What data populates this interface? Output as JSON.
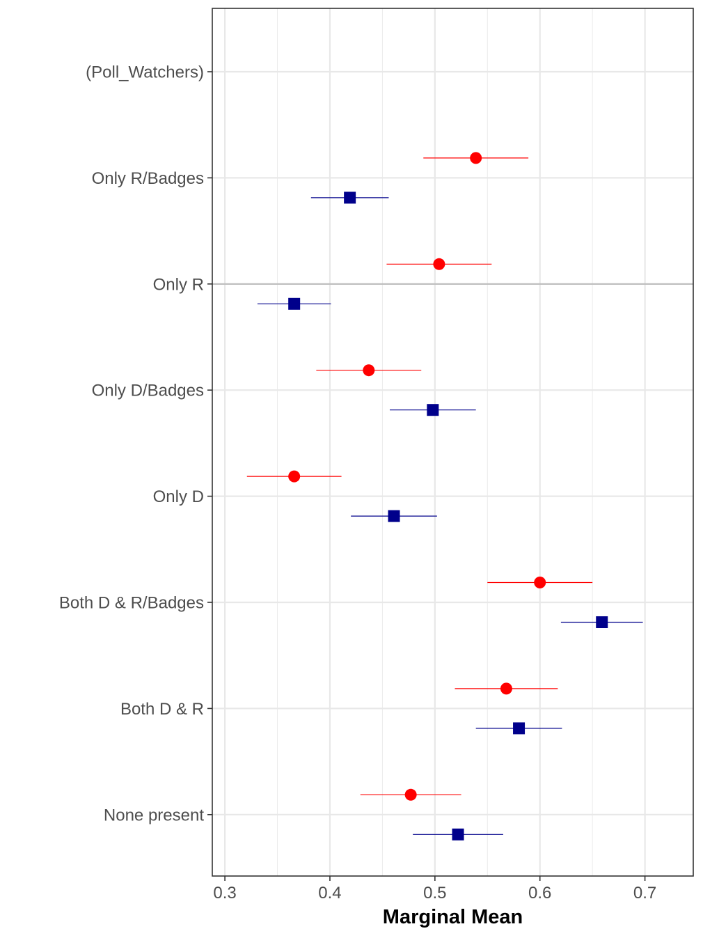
{
  "chart_data": {
    "type": "scatter",
    "title": "",
    "xlabel": "Marginal Mean",
    "ylabel": "",
    "xlim": [
      0.288,
      0.746
    ],
    "x_ticks": [
      "0.3",
      "0.4",
      "0.5",
      "0.6",
      "0.7"
    ],
    "x_tick_values": [
      0.3,
      0.4,
      0.5,
      0.6,
      0.7
    ],
    "reference_line": 0.5,
    "grid": true,
    "legend": "none",
    "categories": [
      "(Poll_Watchers)",
      "Only R/Badges",
      "Only R",
      "Only D/Badges",
      "Only D",
      "Both D & R/Badges",
      "Both D & R",
      "None present"
    ],
    "series": [
      {
        "marker": "circle",
        "color": "#ff0000",
        "points": [
          {
            "category": "Only R/Badges",
            "estimate": 0.539,
            "lower": 0.489,
            "upper": 0.589
          },
          {
            "category": "Only R",
            "estimate": 0.504,
            "lower": 0.454,
            "upper": 0.554
          },
          {
            "category": "Only D/Badges",
            "estimate": 0.437,
            "lower": 0.387,
            "upper": 0.487
          },
          {
            "category": "Only D",
            "estimate": 0.366,
            "lower": 0.321,
            "upper": 0.411
          },
          {
            "category": "Both D & R/Badges",
            "estimate": 0.6,
            "lower": 0.55,
            "upper": 0.65
          },
          {
            "category": "Both D & R",
            "estimate": 0.568,
            "lower": 0.519,
            "upper": 0.617
          },
          {
            "category": "None present",
            "estimate": 0.477,
            "lower": 0.429,
            "upper": 0.525
          }
        ]
      },
      {
        "marker": "square",
        "color": "#00008b",
        "points": [
          {
            "category": "Only R/Badges",
            "estimate": 0.419,
            "lower": 0.382,
            "upper": 0.456
          },
          {
            "category": "Only R",
            "estimate": 0.366,
            "lower": 0.331,
            "upper": 0.401
          },
          {
            "category": "Only D/Badges",
            "estimate": 0.498,
            "lower": 0.457,
            "upper": 0.539
          },
          {
            "category": "Only D",
            "estimate": 0.461,
            "lower": 0.42,
            "upper": 0.502
          },
          {
            "category": "Both D & R/Badges",
            "estimate": 0.659,
            "lower": 0.62,
            "upper": 0.698
          },
          {
            "category": "Both D & R",
            "estimate": 0.58,
            "lower": 0.539,
            "upper": 0.621
          },
          {
            "category": "None present",
            "estimate": 0.522,
            "lower": 0.479,
            "upper": 0.565
          }
        ]
      }
    ]
  }
}
